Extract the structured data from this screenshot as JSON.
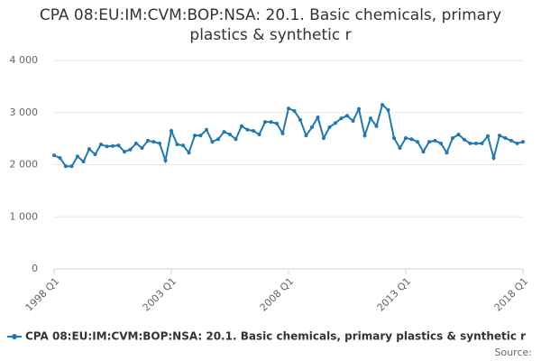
{
  "chart_data": {
    "type": "line",
    "title": "CPA 08:EU:IM:CVM:BOP:NSA: 20.1. Basic chemicals, primary plastics & synthetic r",
    "categories": [
      "1998 Q1",
      null,
      null,
      null,
      null,
      null,
      null,
      null,
      null,
      null,
      null,
      null,
      null,
      null,
      null,
      null,
      null,
      null,
      null,
      null,
      "2003 Q1",
      null,
      null,
      null,
      null,
      null,
      null,
      null,
      null,
      null,
      null,
      null,
      null,
      null,
      null,
      null,
      null,
      null,
      null,
      null,
      "2008 Q1",
      null,
      null,
      null,
      null,
      null,
      null,
      null,
      null,
      null,
      null,
      null,
      null,
      null,
      null,
      null,
      null,
      null,
      null,
      null,
      "2013 Q1",
      null,
      null,
      null,
      null,
      null,
      null,
      null,
      null,
      null,
      null,
      null,
      null,
      null,
      null,
      null,
      null,
      null,
      null,
      null,
      "2018 Q1"
    ],
    "series": [
      {
        "name": "CPA 08:EU:IM:CVM:BOP:NSA: 20.1. Basic chemicals, primary plastics & synthetic r",
        "color": "#1f78b4",
        "values": [
          2180,
          2130,
          1970,
          1970,
          2160,
          2060,
          2300,
          2200,
          2390,
          2350,
          2360,
          2370,
          2250,
          2290,
          2410,
          2320,
          2460,
          2440,
          2410,
          2080,
          2650,
          2390,
          2370,
          2230,
          2560,
          2560,
          2670,
          2440,
          2490,
          2630,
          2580,
          2490,
          2740,
          2670,
          2650,
          2580,
          2820,
          2820,
          2790,
          2600,
          3080,
          3030,
          2860,
          2560,
          2720,
          2910,
          2510,
          2720,
          2800,
          2890,
          2940,
          2840,
          3070,
          2560,
          2890,
          2740,
          3150,
          3050,
          2510,
          2320,
          2510,
          2490,
          2440,
          2250,
          2440,
          2460,
          2410,
          2230,
          2510,
          2580,
          2480,
          2410,
          2410,
          2410,
          2550,
          2130,
          2560,
          2510,
          2460,
          2410,
          2440
        ]
      }
    ],
    "ylim": [
      0,
      4000
    ],
    "yticks": [
      0,
      {
        "value": 1000,
        "label": "1 000"
      },
      {
        "value": 2000,
        "label": "2 000"
      },
      {
        "value": 3000,
        "label": "3 000"
      },
      {
        "value": 4000,
        "label": "4 000"
      }
    ],
    "grid": true,
    "legend": "bottom",
    "source": "Source:"
  }
}
